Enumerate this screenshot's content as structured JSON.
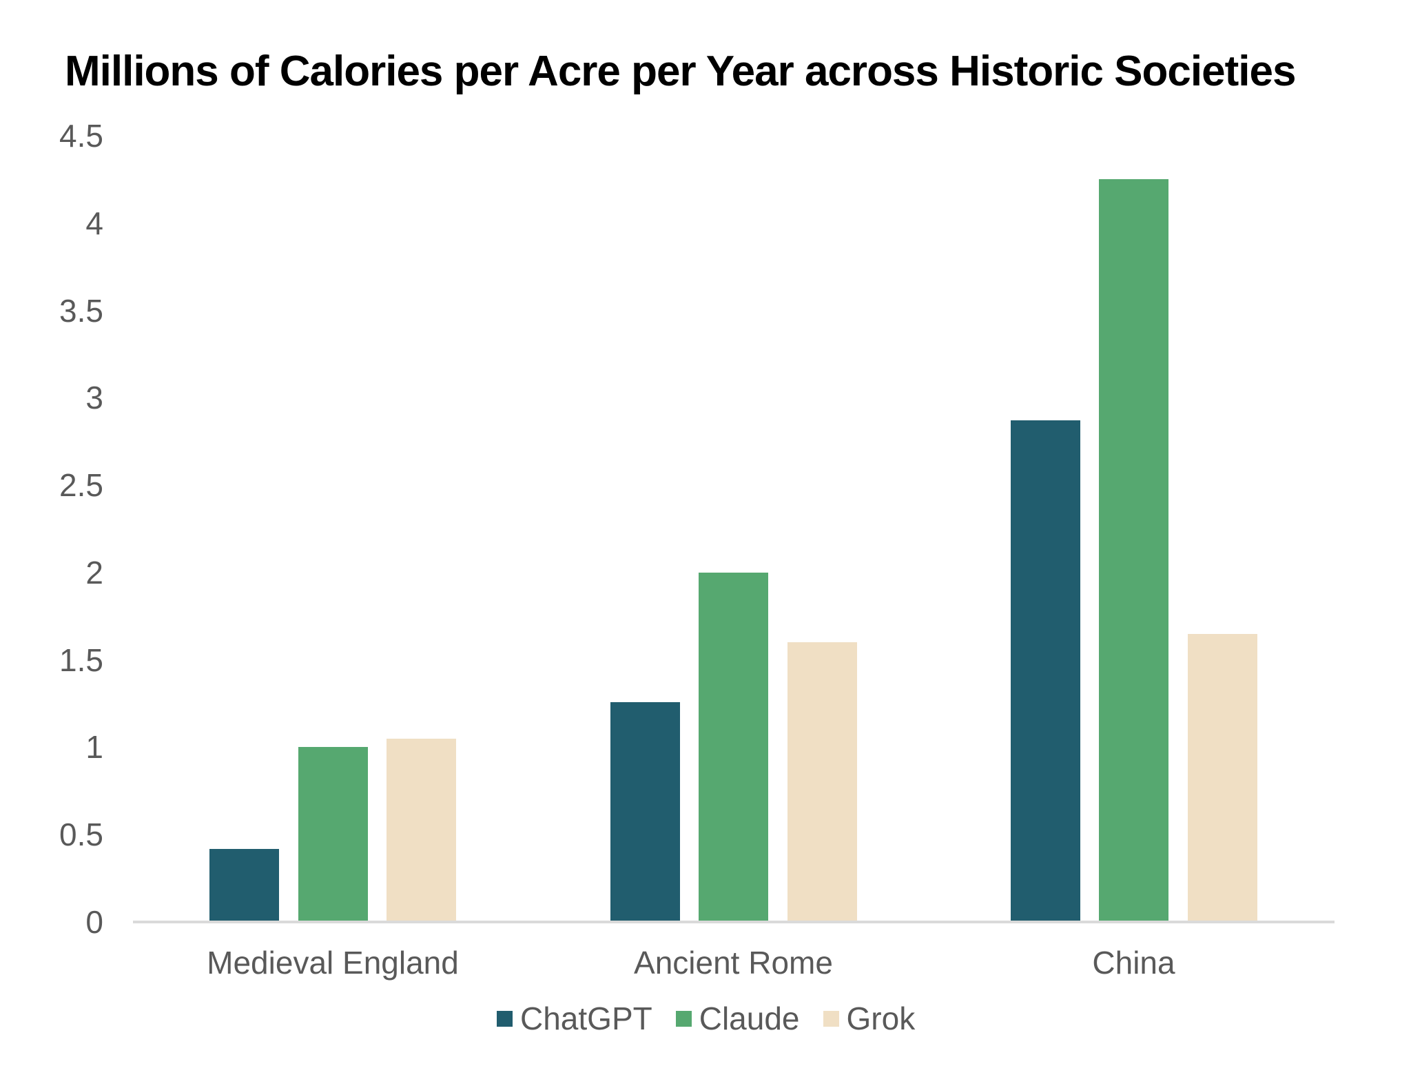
{
  "title": "Millions of Calories per Acre per Year across Historic Societies",
  "chart_data": {
    "type": "bar",
    "title": "Millions of Calories per Acre per Year across Historic Societies",
    "categories": [
      "Medieval England",
      "Ancient Rome",
      "China"
    ],
    "series": [
      {
        "name": "ChatGPT",
        "color": "#215D6E",
        "values": [
          0.42,
          1.26,
          2.87
        ]
      },
      {
        "name": "Claude",
        "color": "#56A870",
        "values": [
          1.0,
          2.0,
          4.25
        ]
      },
      {
        "name": "Grok",
        "color": "#F0DFC4",
        "values": [
          1.05,
          1.6,
          1.65
        ]
      }
    ],
    "xlabel": "",
    "ylabel": "",
    "ylim": [
      0,
      4.5
    ],
    "yticks": [
      0,
      0.5,
      1,
      1.5,
      2,
      2.5,
      3,
      3.5,
      4,
      4.5
    ],
    "grid": false,
    "legend_position": "bottom",
    "colors": {
      "title_text": "#000000",
      "axis_text": "#595959",
      "axis_line": "#DADADA",
      "background": "#FFFFFF"
    }
  }
}
